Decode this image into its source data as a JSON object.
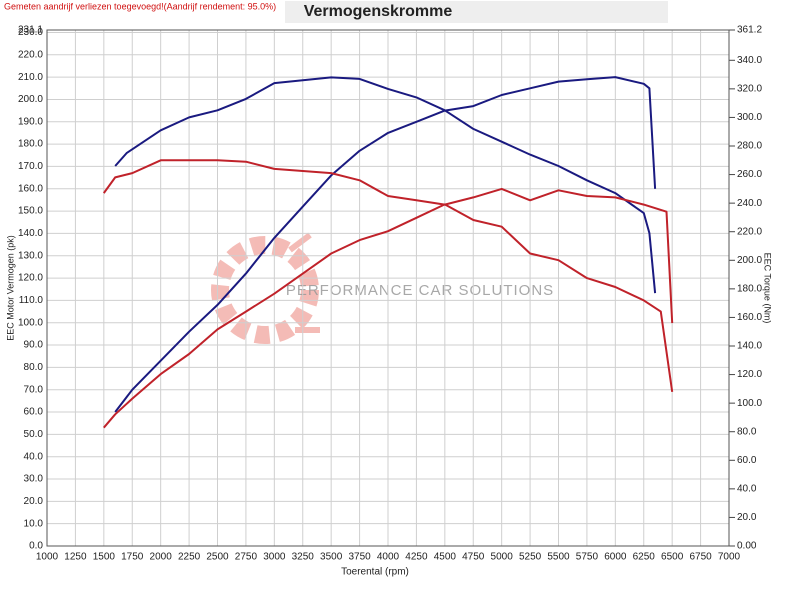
{
  "chart_data": {
    "type": "line",
    "title": "Vermogenskromme",
    "note": "Gemeten aandrijf verliezen toegevoegd!(Aandrijf rendement: 95.0%)",
    "watermark": "PERFORMANCE CAR SOLUTIONS",
    "x_label": "Toerental (rpm)",
    "y_label": "EEC Motor Vermogen (pk)",
    "y2_label": "EEC Torque (Nm)",
    "grid": true,
    "xlim": [
      1000,
      7000
    ],
    "xticks": [
      1000,
      1250,
      1500,
      1750,
      2000,
      2250,
      2500,
      2750,
      3000,
      3250,
      3500,
      3750,
      4000,
      4250,
      4500,
      4750,
      5000,
      5250,
      5500,
      5750,
      6000,
      6250,
      6500,
      6750,
      7000
    ],
    "ylim": [
      0,
      231.1
    ],
    "yticks": [
      {
        "value": 0,
        "label": "0.0"
      },
      {
        "value": 10,
        "label": "10.0"
      },
      {
        "value": 20,
        "label": "20.0"
      },
      {
        "value": 30,
        "label": "30.0"
      },
      {
        "value": 40,
        "label": "40.0"
      },
      {
        "value": 50,
        "label": "50.0"
      },
      {
        "value": 60,
        "label": "60.0"
      },
      {
        "value": 70,
        "label": "70.0"
      },
      {
        "value": 80,
        "label": "80.0"
      },
      {
        "value": 90,
        "label": "90.0"
      },
      {
        "value": 100,
        "label": "100.0"
      },
      {
        "value": 110,
        "label": "110.0"
      },
      {
        "value": 120,
        "label": "120.0"
      },
      {
        "value": 130,
        "label": "130.0"
      },
      {
        "value": 140,
        "label": "140.0"
      },
      {
        "value": 150,
        "label": "150.0"
      },
      {
        "value": 160,
        "label": "160.0"
      },
      {
        "value": 170,
        "label": "170.0"
      },
      {
        "value": 180,
        "label": "180.0"
      },
      {
        "value": 190,
        "label": "190.0"
      },
      {
        "value": 200,
        "label": "200.0"
      },
      {
        "value": 210,
        "label": "210.0"
      },
      {
        "value": 220,
        "label": "220.0"
      },
      {
        "value": 230,
        "label": "230.0"
      },
      231.1
    ],
    "y2lim": [
      0,
      361.2
    ],
    "y2ticks": [
      {
        "value": 0,
        "label": "0.00"
      },
      {
        "value": 20,
        "label": "20.0"
      },
      {
        "value": 40,
        "label": "40.0"
      },
      {
        "value": 60,
        "label": "60.0"
      },
      {
        "value": 80,
        "label": "80.0"
      },
      {
        "value": 100,
        "label": "100.0"
      },
      {
        "value": 120,
        "label": "120.0"
      },
      {
        "value": 140,
        "label": "140.0"
      },
      {
        "value": 160,
        "label": "160.0"
      },
      {
        "value": 180,
        "label": "180.0"
      },
      {
        "value": 200,
        "label": "200.0"
      },
      {
        "value": 220,
        "label": "220.0"
      },
      {
        "value": 240,
        "label": "240.0"
      },
      {
        "value": 260,
        "label": "260.0"
      },
      {
        "value": 280,
        "label": "280.0"
      },
      {
        "value": 300,
        "label": "300.0"
      },
      {
        "value": 320,
        "label": "320.0"
      },
      {
        "value": 340,
        "label": "340.0"
      },
      361.2
    ],
    "series": [
      {
        "color": "#1a1a80",
        "axis": "y2",
        "x": [
          1600,
          1700,
          2000,
          2250,
          2500,
          2750,
          3000,
          3500,
          3750,
          4000,
          4250,
          4500,
          4750,
          5000,
          5250,
          5500,
          5750,
          6000,
          6250,
          6300,
          6350
        ],
        "values": [
          266,
          275,
          291,
          300,
          305,
          313,
          324,
          328,
          327,
          320,
          314,
          305,
          292,
          283,
          274,
          266,
          256,
          247,
          233,
          219,
          177
        ]
      },
      {
        "color": "#1a1a80",
        "x": [
          1600,
          1750,
          2000,
          2250,
          2500,
          2750,
          3000,
          3250,
          3500,
          3750,
          4000,
          4250,
          4500,
          4750,
          5000,
          5250,
          5500,
          5750,
          6000,
          6250,
          6300,
          6350
        ],
        "values": [
          60,
          70,
          83,
          96,
          108,
          122,
          138,
          152,
          166,
          177,
          185,
          190,
          195,
          197,
          202,
          205,
          208,
          209,
          210,
          207,
          205,
          160
        ]
      },
      {
        "color": "#c0222a",
        "axis": "y2",
        "x": [
          1500,
          1600,
          1750,
          2000,
          2250,
          2500,
          2750,
          3000,
          3500,
          3750,
          4000,
          4250,
          4500,
          4750,
          5000,
          5250,
          5500,
          5750,
          6000,
          6250,
          6450,
          6500
        ],
        "values": [
          247,
          258,
          261,
          270,
          270,
          270,
          269,
          264,
          261,
          256,
          245,
          242,
          239,
          244,
          250,
          242,
          249,
          245,
          244,
          239,
          234,
          156
        ]
      },
      {
        "color": "#c0222a",
        "x": [
          1500,
          1600,
          1750,
          2000,
          2250,
          2500,
          2750,
          3000,
          3250,
          3500,
          3750,
          4000,
          4250,
          4500,
          4750,
          5000,
          5250,
          5500,
          5750,
          6000,
          6250,
          6400,
          6500
        ],
        "values": [
          53,
          59,
          66,
          77,
          86,
          97,
          105,
          113,
          122,
          131,
          137,
          141,
          147,
          153,
          146,
          143,
          131,
          128,
          120,
          116,
          110,
          105,
          69
        ]
      }
    ]
  }
}
